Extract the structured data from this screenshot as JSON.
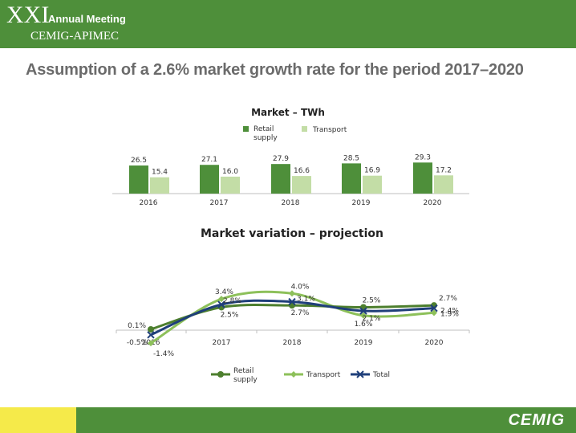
{
  "header": {
    "logo_main": "XXI",
    "logo_event": "Annual Meeting",
    "logo_org": "CEMIG-APIMEC"
  },
  "slide_title": "Assumption of a 2.6% market growth rate for the period 2017–2020",
  "footer": {
    "brand": "CEMIG"
  },
  "colors": {
    "dark_green": "#4e8f3a",
    "light_green": "#c3dda6",
    "line_light": "#8dc05a",
    "line_blue": "#1f3f7a",
    "line_dark": "#4d7f2e"
  },
  "chart_data": [
    {
      "type": "bar",
      "title": "Market – TWh",
      "categories": [
        "2016",
        "2017",
        "2018",
        "2019",
        "2020"
      ],
      "series": [
        {
          "name": "Retail supply",
          "values": [
            26.5,
            27.1,
            27.9,
            28.5,
            29.3
          ],
          "labels": [
            "26.5",
            "27.1",
            "27.9",
            "28.5",
            "29.3"
          ],
          "color": "#4e8f3a"
        },
        {
          "name": "Transport",
          "values": [
            15.4,
            16.0,
            16.6,
            16.9,
            17.2
          ],
          "labels": [
            "15.4",
            "16.0",
            "16.6",
            "16.9",
            "17.2"
          ],
          "color": "#c3dda6"
        }
      ],
      "legend_position": "top"
    },
    {
      "type": "line",
      "title": "Market variation – projection",
      "categories": [
        "2016",
        "2017",
        "2018",
        "2019",
        "2020"
      ],
      "series": [
        {
          "name": "Retail supply",
          "values": [
            0.1,
            2.5,
            2.7,
            2.5,
            2.7
          ],
          "labels": [
            "0.1%",
            "2.5%",
            "2.7%",
            "2.5%",
            "2.7%"
          ],
          "color": "#4d7f2e"
        },
        {
          "name": "Transport",
          "values": [
            -1.4,
            3.4,
            4.0,
            1.6,
            1.9
          ],
          "labels": [
            "-1.4%",
            "3.4%",
            "4.0%",
            "1.6%",
            "1.9%"
          ],
          "color": "#8dc05a"
        },
        {
          "name": "Total",
          "values": [
            -0.5,
            2.8,
            3.1,
            2.1,
            2.4
          ],
          "labels": [
            "-0.5%",
            "2.8%",
            "3.1%",
            "2.1%",
            "2.4%"
          ],
          "color": "#1f3f7a"
        }
      ],
      "smooth": true,
      "legend_position": "bottom"
    }
  ]
}
